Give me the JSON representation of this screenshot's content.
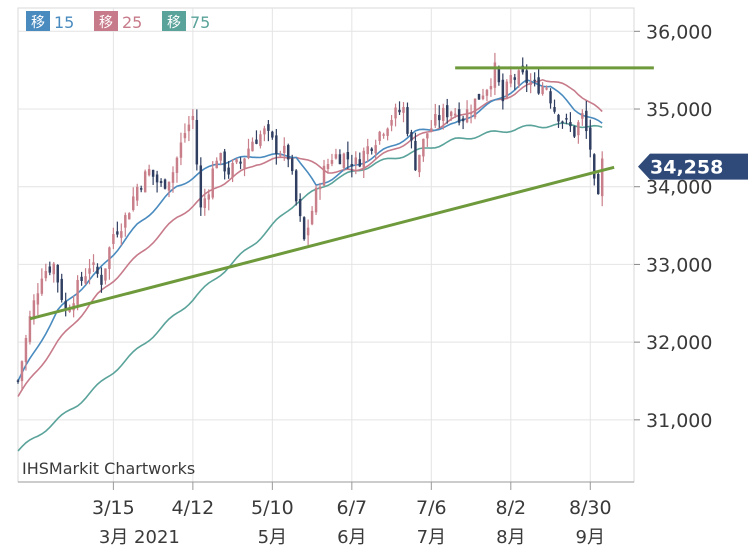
{
  "chart_data": {
    "type": "candlestick",
    "title": "",
    "credit": "IHSMarkit Chartworks",
    "legend": [
      {
        "label": "移",
        "period": "15",
        "color": "#4a8bbf"
      },
      {
        "label": "移",
        "period": "25",
        "color": "#c77b8a"
      },
      {
        "label": "移",
        "period": "75",
        "color": "#5aa39a"
      }
    ],
    "y_ticks": [
      "36,000",
      "35,000",
      "34,000",
      "33,000",
      "32,000",
      "31,000"
    ],
    "y_tick_values": [
      36000,
      35000,
      34000,
      33000,
      32000,
      31000
    ],
    "ylim": [
      30200,
      36300
    ],
    "x_ticks": [
      "3/15",
      "4/12",
      "5/10",
      "6/7",
      "7/6",
      "8/2",
      "8/30"
    ],
    "x_tick_positions": [
      24,
      44,
      64,
      84,
      104,
      124,
      144
    ],
    "month_labels": [
      "3月 2021",
      "5月",
      "6月",
      "7月",
      "8月",
      "9月"
    ],
    "month_positions": [
      24,
      64,
      84,
      104,
      124,
      144
    ],
    "last_value": "34,258",
    "last_value_num": 34258,
    "candles_start_anchor": {
      "index": 0,
      "close": 31500
    },
    "close_anchors": [
      [
        0,
        31500
      ],
      [
        3,
        32300
      ],
      [
        6,
        32900
      ],
      [
        9,
        33000
      ],
      [
        12,
        32400
      ],
      [
        15,
        32700
      ],
      [
        18,
        33000
      ],
      [
        21,
        32800
      ],
      [
        24,
        33400
      ],
      [
        27,
        33600
      ],
      [
        30,
        34000
      ],
      [
        33,
        34200
      ],
      [
        36,
        34000
      ],
      [
        39,
        34200
      ],
      [
        42,
        34700
      ],
      [
        44,
        34900
      ],
      [
        46,
        33700
      ],
      [
        48,
        34000
      ],
      [
        50,
        34400
      ],
      [
        53,
        34200
      ],
      [
        56,
        34300
      ],
      [
        59,
        34600
      ],
      [
        62,
        34700
      ],
      [
        65,
        34500
      ],
      [
        68,
        34400
      ],
      [
        70,
        33800
      ],
      [
        72,
        33300
      ],
      [
        74,
        33700
      ],
      [
        76,
        34100
      ],
      [
        79,
        34400
      ],
      [
        82,
        34400
      ],
      [
        85,
        34300
      ],
      [
        88,
        34500
      ],
      [
        91,
        34700
      ],
      [
        94,
        34900
      ],
      [
        97,
        35000
      ],
      [
        100,
        34300
      ],
      [
        103,
        34700
      ],
      [
        106,
        34900
      ],
      [
        109,
        35000
      ],
      [
        112,
        34900
      ],
      [
        115,
        35100
      ],
      [
        118,
        35300
      ],
      [
        120,
        35500
      ],
      [
        122,
        35100
      ],
      [
        124,
        35400
      ],
      [
        127,
        35400
      ],
      [
        130,
        35300
      ],
      [
        133,
        35300
      ],
      [
        135,
        35000
      ],
      [
        138,
        34800
      ],
      [
        140,
        34700
      ],
      [
        142,
        34900
      ],
      [
        144,
        34500
      ],
      [
        145,
        34000
      ],
      [
        146,
        33800
      ],
      [
        147,
        34300
      ]
    ],
    "ma15_anchors": [
      [
        0,
        31500
      ],
      [
        10,
        32400
      ],
      [
        20,
        32900
      ],
      [
        30,
        33500
      ],
      [
        40,
        34000
      ],
      [
        50,
        34300
      ],
      [
        60,
        34400
      ],
      [
        70,
        34400
      ],
      [
        75,
        34000
      ],
      [
        82,
        34200
      ],
      [
        90,
        34400
      ],
      [
        100,
        34700
      ],
      [
        110,
        34800
      ],
      [
        120,
        35100
      ],
      [
        128,
        35350
      ],
      [
        134,
        35300
      ],
      [
        140,
        35000
      ],
      [
        147,
        34800
      ]
    ],
    "ma25_anchors": [
      [
        0,
        31300
      ],
      [
        10,
        32000
      ],
      [
        20,
        32600
      ],
      [
        30,
        33100
      ],
      [
        40,
        33600
      ],
      [
        50,
        34000
      ],
      [
        60,
        34300
      ],
      [
        70,
        34400
      ],
      [
        78,
        34200
      ],
      [
        85,
        34200
      ],
      [
        95,
        34500
      ],
      [
        105,
        34750
      ],
      [
        115,
        35000
      ],
      [
        125,
        35200
      ],
      [
        132,
        35400
      ],
      [
        140,
        35250
      ],
      [
        147,
        34950
      ]
    ],
    "ma75_anchors": [
      [
        0,
        30600
      ],
      [
        15,
        31200
      ],
      [
        30,
        31900
      ],
      [
        45,
        32600
      ],
      [
        60,
        33300
      ],
      [
        70,
        33800
      ],
      [
        80,
        34100
      ],
      [
        90,
        34300
      ],
      [
        100,
        34450
      ],
      [
        110,
        34600
      ],
      [
        120,
        34700
      ],
      [
        130,
        34780
      ],
      [
        140,
        34800
      ],
      [
        147,
        34750
      ]
    ],
    "trendlines": [
      {
        "name": "support",
        "from": [
          3,
          32300
        ],
        "to": [
          150,
          34250
        ],
        "color": "#6e9a3c"
      },
      {
        "name": "resistance",
        "from": [
          110,
          35530
        ],
        "to": [
          160,
          35530
        ],
        "color": "#6e9a3c"
      }
    ],
    "x_index_range": [
      0,
      155
    ],
    "grid": true,
    "legend_position": "top-left"
  }
}
